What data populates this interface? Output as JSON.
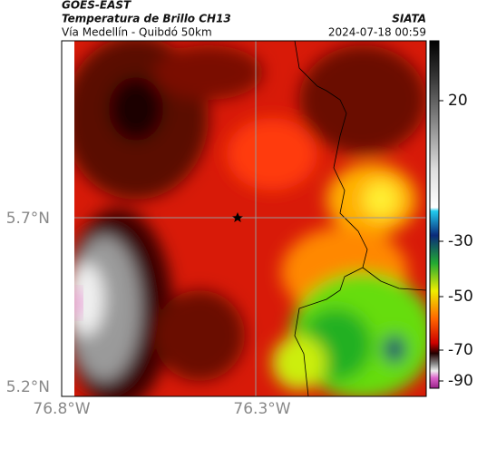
{
  "header": {
    "source": "GOES-EAST",
    "title": "Temperatura de Brillo CH13",
    "subtitle": "Vía Medellín - Quibdó 50km",
    "agency": "SIATA",
    "timestamp": "2024-07-18 00:59"
  },
  "map": {
    "lat_ticks": [
      "5.7°N",
      "5.2°N"
    ],
    "lon_ticks": [
      "76.8°W",
      "76.3°W"
    ]
  },
  "colorbar": {
    "ticks": [
      "20",
      "-30",
      "-50",
      "-70",
      "-90"
    ]
  }
}
